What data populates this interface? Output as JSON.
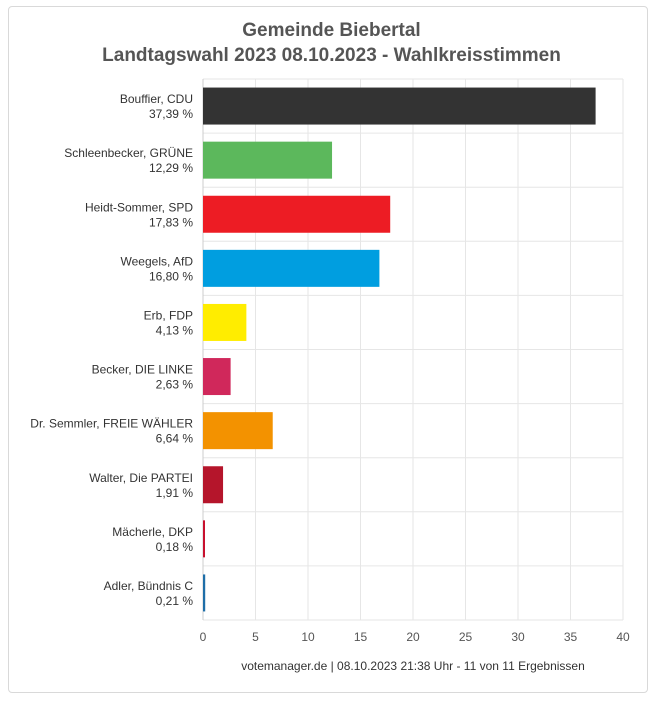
{
  "chart_data": {
    "type": "bar",
    "orientation": "horizontal",
    "title": "Gemeinde Biebertal",
    "subtitle": "Landtagswahl 2023 08.10.2023  - Wahlkreisstimmen",
    "categories": [
      "Bouffier, CDU",
      "Schleenbecker, GRÜNE",
      "Heidt-Sommer, SPD",
      "Weegels, AfD",
      "Erb, FDP",
      "Becker, DIE LINKE",
      "Dr. Semmler, FREIE WÄHLER",
      "Walter, Die PARTEI",
      "Mächerle, DKP",
      "Adler, Bündnis C"
    ],
    "values": [
      37.39,
      12.29,
      17.83,
      16.8,
      4.13,
      2.63,
      6.64,
      1.91,
      0.18,
      0.21
    ],
    "value_labels": [
      "37,39 %",
      "12,29 %",
      "17,83 %",
      "16,80 %",
      "4,13 %",
      "2,63 %",
      "6,64 %",
      "1,91 %",
      "0,18 %",
      "0,21 %"
    ],
    "colors": [
      "#333333",
      "#5cb85c",
      "#ed1c24",
      "#009ee0",
      "#ffed00",
      "#d0285b",
      "#f39200",
      "#b5152b",
      "#c8102e",
      "#1e6ea8"
    ],
    "xlim": [
      0,
      40
    ],
    "xticks": [
      "0",
      "5",
      "10",
      "15",
      "20",
      "25",
      "30",
      "35",
      "40"
    ],
    "grid": true,
    "footer": "votemanager.de | 08.10.2023 21:38 Uhr - 11 von 11 Ergebnissen"
  }
}
